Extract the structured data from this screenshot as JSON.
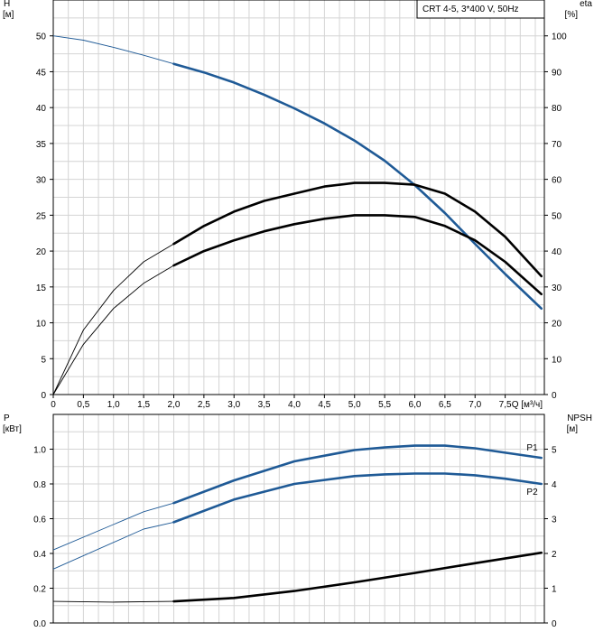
{
  "chart_data": [
    {
      "id": "head-eta",
      "type": "line",
      "legend_box": "CRT 4-5, 3*400 V, 50Hz",
      "xlabel": "Q [м³/ч]",
      "xlim": [
        0,
        8.15
      ],
      "xticks": [
        "0",
        "0,5",
        "1,0",
        "1,5",
        "2,0",
        "2,5",
        "3,0",
        "3,5",
        "4,0",
        "4,5",
        "5,0",
        "5,5",
        "6,0",
        "6,5",
        "7,0",
        "7,5"
      ],
      "y_left": {
        "label_top": "H",
        "label_unit": "[м]",
        "ylim": [
          0,
          55
        ],
        "ticks": [
          "0",
          "5",
          "10",
          "15",
          "20",
          "25",
          "30",
          "35",
          "40",
          "45",
          "50"
        ]
      },
      "y_right": {
        "label_top": "eta",
        "label_unit": "[%]",
        "ylim": [
          0,
          110
        ],
        "ticks": [
          "0",
          "10",
          "20",
          "30",
          "40",
          "50",
          "60",
          "70",
          "80",
          "90",
          "100"
        ]
      },
      "grid": true,
      "series": [
        {
          "axis": "left",
          "color": "#1f5a96",
          "x": [
            0,
            0.5,
            1.0,
            1.5,
            2.0,
            2.5,
            3.0,
            3.5,
            4.0,
            4.5,
            5.0,
            5.5,
            6.0,
            6.5,
            7.0,
            7.5,
            8.1
          ],
          "y": [
            50,
            49.4,
            48.4,
            47.3,
            46.1,
            44.9,
            43.5,
            41.8,
            39.9,
            37.8,
            35.4,
            32.6,
            29.2,
            25.3,
            21.0,
            16.8,
            12.0
          ],
          "operating_from_x": 2.0
        },
        {
          "axis": "right",
          "color": "#000000",
          "x": [
            0,
            0.5,
            1.0,
            1.5,
            2.0,
            2.5,
            3.0,
            3.5,
            4.0,
            4.5,
            5.0,
            5.5,
            6.0,
            6.5,
            7.0,
            7.5,
            8.1
          ],
          "y": [
            0,
            18,
            29,
            37,
            42,
            47,
            51,
            54,
            56,
            58,
            59,
            59,
            58.5,
            56,
            51,
            44,
            33
          ],
          "operating_from_x": 2.0
        },
        {
          "axis": "right",
          "color": "#000000",
          "x": [
            0,
            0.5,
            1.0,
            1.5,
            2.0,
            2.5,
            3.0,
            3.5,
            4.0,
            4.5,
            5.0,
            5.5,
            6.0,
            6.5,
            7.0,
            7.5,
            8.1
          ],
          "y": [
            0,
            14,
            24,
            31,
            36,
            40,
            43,
            45.5,
            47.5,
            49,
            50,
            50,
            49.5,
            47,
            43,
            37,
            28
          ],
          "operating_from_x": 2.0
        }
      ]
    },
    {
      "id": "power-npsh",
      "type": "line",
      "xlim": [
        0,
        8.15
      ],
      "y_left": {
        "label_top": "P",
        "label_unit": "[кВт]",
        "ylim": [
          0,
          1.2
        ],
        "ticks": [
          "0.0",
          "0.2",
          "0.4",
          "0.6",
          "0.8",
          "1.0"
        ]
      },
      "y_right": {
        "label_top": "NPSH",
        "label_unit": "[м]",
        "ylim": [
          0,
          6
        ],
        "ticks": [
          "0",
          "1",
          "2",
          "3",
          "4",
          "5"
        ]
      },
      "grid": true,
      "series": [
        {
          "name": "P1",
          "axis": "left",
          "color": "#1f5a96",
          "x": [
            0,
            1.5,
            2.0,
            3.0,
            4.0,
            5.0,
            5.5,
            6.0,
            6.5,
            7.0,
            7.5,
            8.1
          ],
          "y": [
            0.42,
            0.64,
            0.69,
            0.82,
            0.93,
            0.995,
            1.01,
            1.02,
            1.02,
            1.005,
            0.98,
            0.95
          ],
          "operating_from_x": 2.0
        },
        {
          "name": "P2",
          "axis": "left",
          "color": "#1f5a96",
          "x": [
            0,
            1.5,
            2.0,
            3.0,
            4.0,
            5.0,
            5.5,
            6.0,
            6.5,
            7.0,
            7.5,
            8.1
          ],
          "y": [
            0.31,
            0.54,
            0.58,
            0.71,
            0.8,
            0.845,
            0.855,
            0.86,
            0.86,
            0.85,
            0.83,
            0.8
          ],
          "operating_from_x": 2.0
        },
        {
          "axis": "right",
          "color": "#000000",
          "x": [
            0,
            1.0,
            2.0,
            3.0,
            4.0,
            5.0,
            6.0,
            7.0,
            8.1
          ],
          "y": [
            0.62,
            0.6,
            0.62,
            0.72,
            0.92,
            1.17,
            1.44,
            1.72,
            2.02
          ],
          "operating_from_x": 2.0
        }
      ]
    }
  ]
}
